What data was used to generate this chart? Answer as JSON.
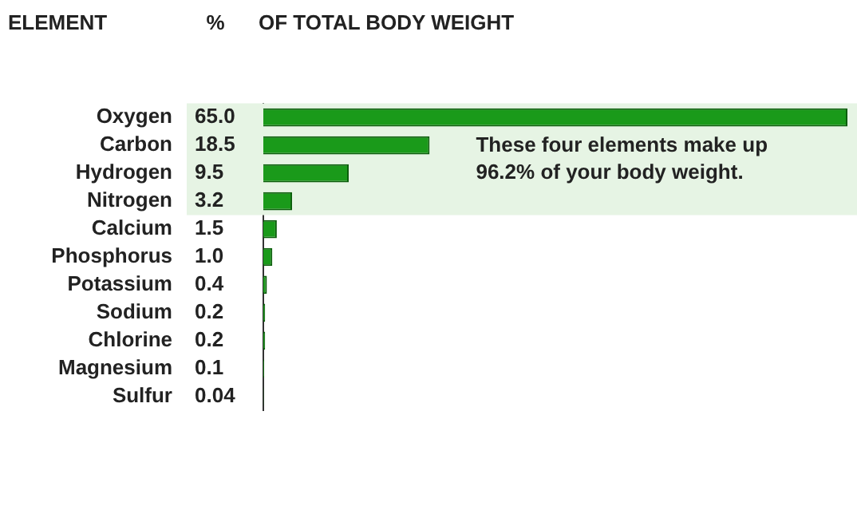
{
  "chart_data": {
    "type": "bar",
    "orientation": "horizontal",
    "title": "OF TOTAL BODY WEIGHT",
    "xlabel": "%",
    "ylabel": "ELEMENT",
    "categories": [
      "Oxygen",
      "Carbon",
      "Hydrogen",
      "Nitrogen",
      "Calcium",
      "Phosphorus",
      "Potassium",
      "Sodium",
      "Chlorine",
      "Magnesium",
      "Sulfur"
    ],
    "values": [
      65.0,
      18.5,
      9.5,
      3.2,
      1.5,
      1.0,
      0.4,
      0.2,
      0.2,
      0.1,
      0.04
    ],
    "value_labels": [
      "65.0",
      "18.5",
      "9.5",
      "3.2",
      "1.5",
      "1.0",
      "0.4",
      "0.2",
      "0.2",
      "0.1",
      "0.04"
    ],
    "color": "#1a9a1a",
    "xlim": [
      0,
      65
    ],
    "tick_labels": "y",
    "grid": false,
    "legend": false,
    "bands": [
      {
        "axis": "y",
        "from": "Oxygen",
        "to": "Nitrogen",
        "label": "These four elements make up 96.2% of your body weight.",
        "color": "#e6f4e4"
      }
    ]
  }
}
